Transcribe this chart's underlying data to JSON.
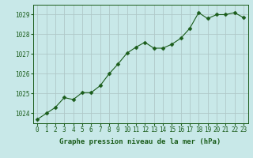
{
  "x": [
    0,
    1,
    2,
    3,
    4,
    5,
    6,
    7,
    8,
    9,
    10,
    11,
    12,
    13,
    14,
    15,
    16,
    17,
    18,
    19,
    20,
    21,
    22,
    23
  ],
  "y": [
    1023.7,
    1024.0,
    1024.3,
    1024.8,
    1024.7,
    1025.05,
    1025.05,
    1025.4,
    1026.0,
    1026.5,
    1027.05,
    1027.35,
    1027.6,
    1027.3,
    1027.3,
    1027.5,
    1027.8,
    1028.3,
    1029.1,
    1028.8,
    1029.0,
    1029.0,
    1029.1,
    1028.85
  ],
  "line_color": "#1a5c1a",
  "marker": "D",
  "marker_size": 2.5,
  "background_color": "#c8e8e8",
  "grid_color": "#b0c8c8",
  "label_color": "#1a5c1a",
  "xlabel": "Graphe pression niveau de la mer (hPa)",
  "ylim": [
    1023.5,
    1029.5
  ],
  "yticks": [
    1024,
    1025,
    1026,
    1027,
    1028,
    1029
  ],
  "xticks": [
    0,
    1,
    2,
    3,
    4,
    5,
    6,
    7,
    8,
    9,
    10,
    11,
    12,
    13,
    14,
    15,
    16,
    17,
    18,
    19,
    20,
    21,
    22,
    23
  ],
  "xlabel_fontsize": 6.5,
  "tick_fontsize": 5.5,
  "tick_color": "#1a5c1a",
  "axes_edge_color": "#1a5c1a"
}
